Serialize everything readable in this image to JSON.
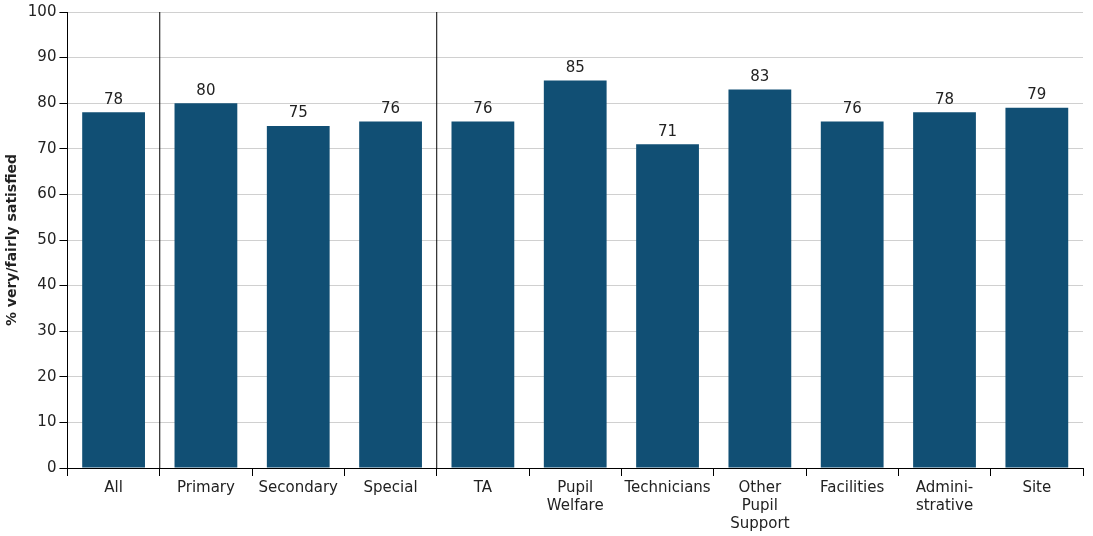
{
  "chart_data": {
    "type": "bar",
    "ylabel": "% very/fairly satisfied",
    "categories": [
      "All",
      "Primary",
      "Secondary",
      "Special",
      "TA",
      "Pupil\nWelfare",
      "Technicians",
      "Other\nPupil\nSupport",
      "Facilities",
      "Admini-\nstrative",
      "Site"
    ],
    "values": [
      78,
      80,
      75,
      76,
      76,
      85,
      71,
      83,
      76,
      78,
      79
    ],
    "color": "#114f74",
    "ylim": [
      0,
      100
    ],
    "yticks": [
      0,
      10,
      20,
      30,
      40,
      50,
      60,
      70,
      80,
      90,
      100
    ],
    "grid": "y",
    "legend": false,
    "data_labels": true
  }
}
